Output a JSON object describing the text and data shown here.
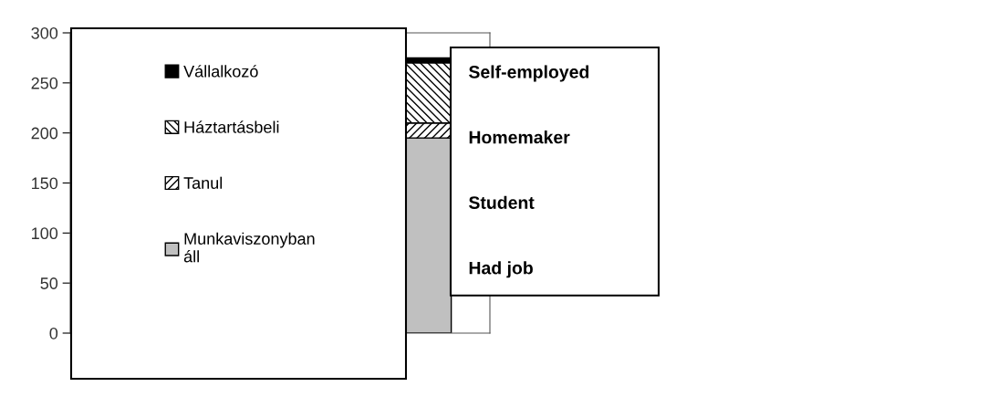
{
  "chart_data": {
    "type": "bar",
    "stacked": true,
    "categories": [
      null
    ],
    "series": [
      {
        "name": "Munkaviszonyban áll",
        "color": "#c0c0c0",
        "values": [
          195
        ]
      },
      {
        "name": "Tanul",
        "color": "#000000",
        "values": [
          15
        ]
      },
      {
        "name": "Háztartásbeli",
        "color": "#000000",
        "values": [
          60
        ]
      },
      {
        "name": "Vállalkozó",
        "color": "#000000",
        "values": [
          5
        ]
      }
    ],
    "ylim": [
      0,
      300
    ],
    "yticks": [
      0,
      50,
      100,
      150,
      200,
      250,
      300
    ],
    "grid": false,
    "legend": "left",
    "annotations": [
      "Self-employed",
      "Homemaker",
      "Student",
      "Had job"
    ]
  }
}
